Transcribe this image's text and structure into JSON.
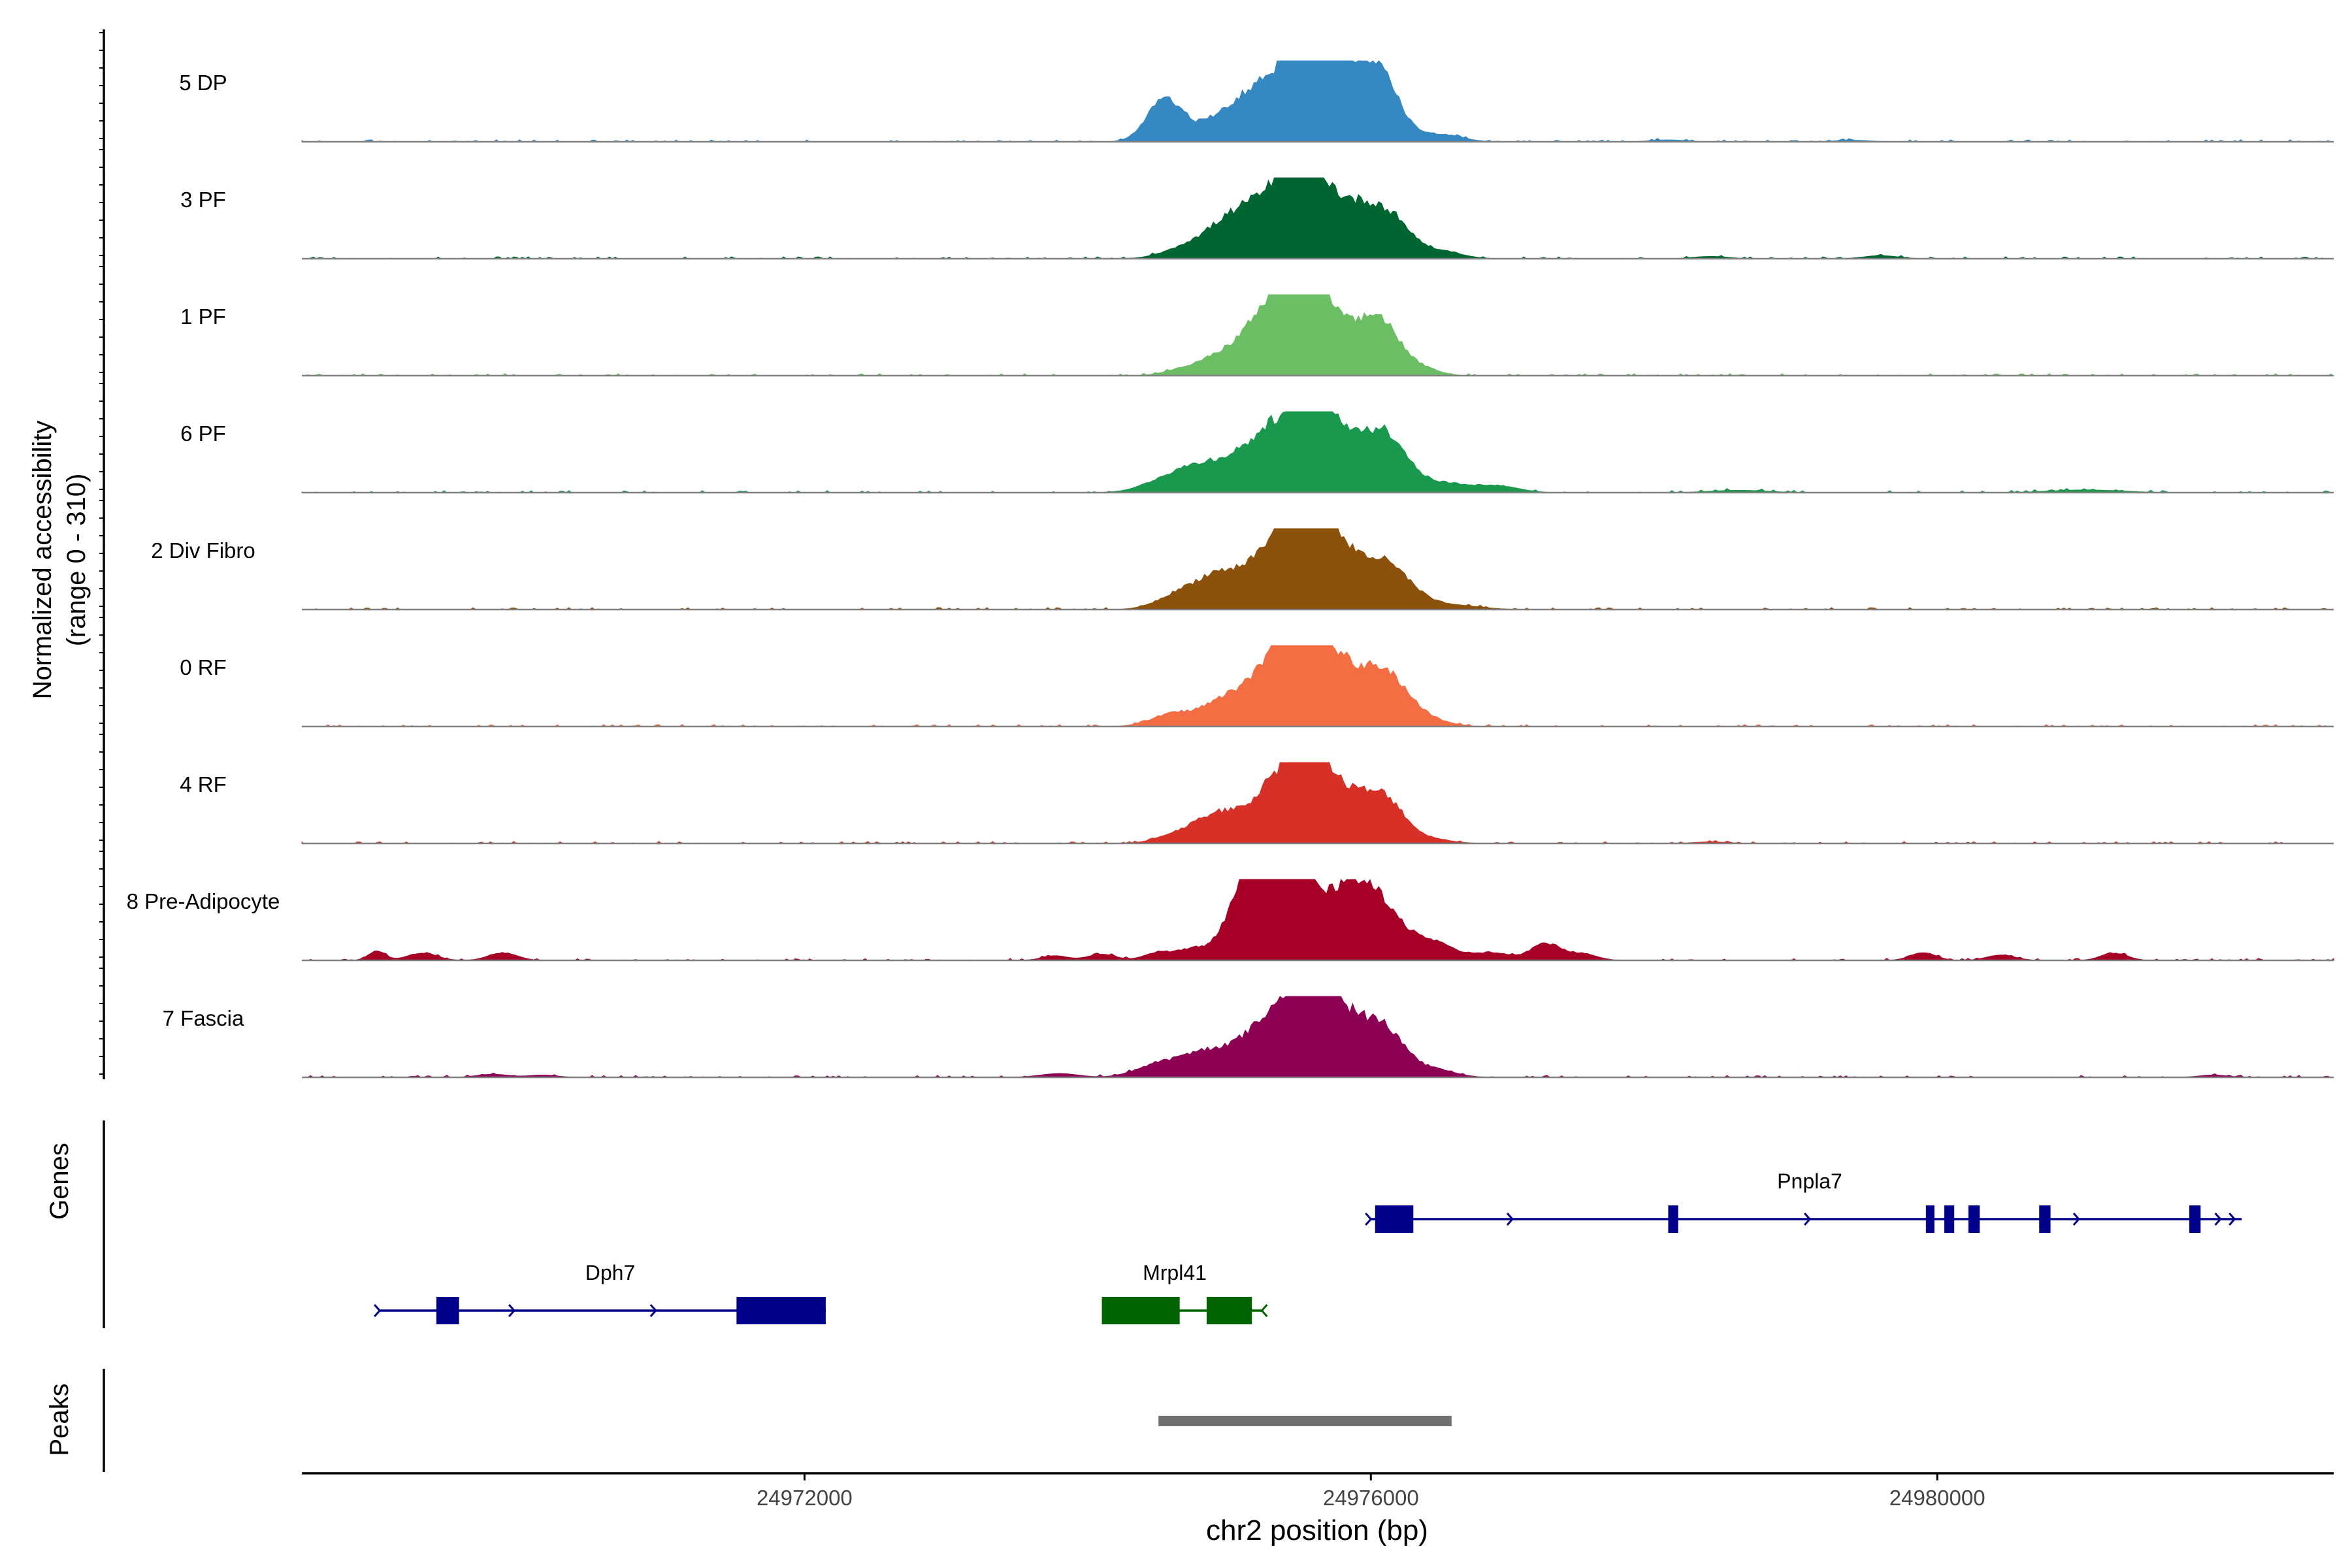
{
  "chart_data": {
    "type": "area",
    "title": "",
    "ylabel_line1": "Normalized accessibility",
    "ylabel_line2": "(range 0 - 310)",
    "yrange": [
      0,
      310
    ],
    "xlabel": "chr2 position (bp)",
    "xrange": [
      24968450,
      24982800
    ],
    "xticks": [
      24972000,
      24976000,
      24980000
    ],
    "xtick_labels": [
      "24972000",
      "24976000",
      "24980000"
    ],
    "tracks": [
      {
        "label": "5 DP",
        "color": "#3588c2",
        "peaks": [
          [
            24974540,
            120,
            0.55
          ],
          [
            24974830,
            200,
            0.11
          ],
          [
            24975000,
            150,
            0.14
          ],
          [
            24975380,
            250,
            0.9
          ],
          [
            24975590,
            130,
            0.68
          ],
          [
            24975700,
            110,
            0.35
          ],
          [
            24975900,
            160,
            0.38
          ],
          [
            24975990,
            150,
            0.55
          ],
          [
            24976120,
            120,
            0.32
          ],
          [
            24976480,
            150,
            0.1
          ],
          [
            24978100,
            120,
            0.025
          ],
          [
            24979400,
            120,
            0.02
          ]
        ]
      },
      {
        "label": "3 PF",
        "color": "#006631",
        "peaks": [
          [
            24974700,
            160,
            0.15
          ],
          [
            24974980,
            150,
            0.3
          ],
          [
            24975370,
            240,
            0.92
          ],
          [
            24975560,
            130,
            0.65
          ],
          [
            24975800,
            150,
            0.23
          ],
          [
            24975980,
            170,
            0.52
          ],
          [
            24976180,
            130,
            0.28
          ],
          [
            24976480,
            150,
            0.1
          ],
          [
            24978400,
            120,
            0.03
          ],
          [
            24979600,
            120,
            0.04
          ]
        ]
      },
      {
        "label": "1 PF",
        "color": "#6cbe64",
        "peaks": [
          [
            24974710,
            140,
            0.1
          ],
          [
            24974930,
            120,
            0.18
          ],
          [
            24975170,
            140,
            0.22
          ],
          [
            24975390,
            200,
            0.96
          ],
          [
            24975590,
            130,
            0.72
          ],
          [
            24975750,
            100,
            0.15
          ],
          [
            24975960,
            160,
            0.55
          ],
          [
            24976100,
            120,
            0.35
          ],
          [
            24976350,
            120,
            0.1
          ]
        ]
      },
      {
        "label": "6 PF",
        "color": "#19994d",
        "peaks": [
          [
            24974560,
            170,
            0.14
          ],
          [
            24974850,
            200,
            0.3
          ],
          [
            24975390,
            250,
            0.94
          ],
          [
            24975590,
            120,
            0.62
          ],
          [
            24975800,
            110,
            0.28
          ],
          [
            24975990,
            160,
            0.55
          ],
          [
            24976160,
            130,
            0.38
          ],
          [
            24976500,
            220,
            0.13
          ],
          [
            24976920,
            140,
            0.07
          ],
          [
            24978600,
            200,
            0.03
          ],
          [
            24981050,
            250,
            0.035
          ]
        ]
      },
      {
        "label": "2 Div Fibro",
        "color": "#8c510a",
        "peaks": [
          [
            24974660,
            160,
            0.2
          ],
          [
            24974920,
            150,
            0.34
          ],
          [
            24975400,
            230,
            1.0
          ],
          [
            24975600,
            130,
            0.72
          ],
          [
            24975800,
            120,
            0.25
          ],
          [
            24976000,
            170,
            0.5
          ],
          [
            24976200,
            150,
            0.25
          ],
          [
            24976550,
            200,
            0.06
          ]
        ]
      },
      {
        "label": "0 RF",
        "color": "#f46d43",
        "peaks": [
          [
            24974600,
            150,
            0.16
          ],
          [
            24974930,
            150,
            0.22
          ],
          [
            24975380,
            230,
            0.97
          ],
          [
            24975590,
            140,
            0.68
          ],
          [
            24975800,
            120,
            0.22
          ],
          [
            24975980,
            170,
            0.55
          ],
          [
            24976170,
            140,
            0.33
          ],
          [
            24976400,
            150,
            0.08
          ]
        ]
      },
      {
        "label": "4 RF",
        "color": "#d73027",
        "peaks": [
          [
            24974670,
            150,
            0.15
          ],
          [
            24974910,
            130,
            0.28
          ],
          [
            24975400,
            230,
            0.92
          ],
          [
            24975590,
            130,
            0.62
          ],
          [
            24975810,
            110,
            0.2
          ],
          [
            24975990,
            160,
            0.5
          ],
          [
            24976150,
            120,
            0.25
          ],
          [
            24976400,
            150,
            0.06
          ],
          [
            24978400,
            120,
            0.02
          ]
        ]
      },
      {
        "label": "8 Pre-Adipocyte",
        "color": "#a60026",
        "peaks": [
          [
            24968980,
            60,
            0.12
          ],
          [
            24969300,
            100,
            0.1
          ],
          [
            24969870,
            100,
            0.1
          ],
          [
            24973770,
            90,
            0.06
          ],
          [
            24974100,
            100,
            0.08
          ],
          [
            24974500,
            100,
            0.1
          ],
          [
            24974760,
            120,
            0.15
          ],
          [
            24975030,
            110,
            0.38
          ],
          [
            24975150,
            100,
            0.6
          ],
          [
            24975270,
            130,
            1.0
          ],
          [
            24975430,
            110,
            0.7
          ],
          [
            24975540,
            100,
            0.55
          ],
          [
            24975640,
            90,
            0.25
          ],
          [
            24975770,
            90,
            0.35
          ],
          [
            24975880,
            130,
            0.55
          ],
          [
            24976000,
            140,
            0.48
          ],
          [
            24976180,
            150,
            0.3
          ],
          [
            24976450,
            150,
            0.2
          ],
          [
            24976850,
            130,
            0.1
          ],
          [
            24977240,
            110,
            0.22
          ],
          [
            24977500,
            100,
            0.08
          ],
          [
            24979900,
            90,
            0.1
          ],
          [
            24980450,
            100,
            0.07
          ],
          [
            24981250,
            90,
            0.1
          ]
        ]
      },
      {
        "label": "7 Fascia",
        "color": "#8d0154",
        "peaks": [
          [
            24973800,
            130,
            0.05
          ],
          [
            24974500,
            160,
            0.16
          ],
          [
            24974850,
            180,
            0.3
          ],
          [
            24975380,
            230,
            0.92
          ],
          [
            24975590,
            130,
            0.7
          ],
          [
            24975780,
            110,
            0.28
          ],
          [
            24975960,
            170,
            0.58
          ],
          [
            24976150,
            130,
            0.3
          ],
          [
            24976450,
            140,
            0.1
          ],
          [
            24969800,
            110,
            0.04
          ],
          [
            24970150,
            100,
            0.03
          ],
          [
            24981950,
            100,
            0.03
          ]
        ]
      }
    ],
    "genes_label": "Genes",
    "genes": [
      {
        "name": "Dph7",
        "row": 2,
        "color": "#00008b",
        "strand": "+",
        "start": 24969000,
        "end": 24972150,
        "exons": [
          [
            24969400,
            24969560
          ],
          [
            24971520,
            24972150
          ]
        ],
        "arrows": [
          24969000,
          24969950,
          24970950
        ]
      },
      {
        "name": "Mrpl41",
        "row": 2,
        "color": "#006400",
        "strand": "-",
        "start": 24974100,
        "end": 24975230,
        "exons": [
          [
            24974100,
            24974650
          ],
          [
            24974840,
            24975160
          ]
        ],
        "arrows": [
          24975230
        ]
      },
      {
        "name": "Pnpla7",
        "row": 1,
        "color": "#00008b",
        "strand": "+",
        "start": 24976000,
        "end": 24982150,
        "exons": [
          [
            24976030,
            24976300
          ],
          [
            24978100,
            24978170
          ],
          [
            24979920,
            24979980
          ],
          [
            24980050,
            24980120
          ],
          [
            24980220,
            24980300
          ],
          [
            24980720,
            24980800
          ],
          [
            24981780,
            24981860
          ]
        ],
        "arrows": [
          24976000,
          24977000,
          24979100,
          24981000,
          24982000,
          24982100
        ]
      }
    ],
    "peaks_label": "Peaks",
    "peak_regions": [
      [
        24974500,
        24976570
      ]
    ]
  },
  "colors": {
    "axis": "#000000",
    "baseline": "#808080",
    "peak_bar": "#707070"
  }
}
